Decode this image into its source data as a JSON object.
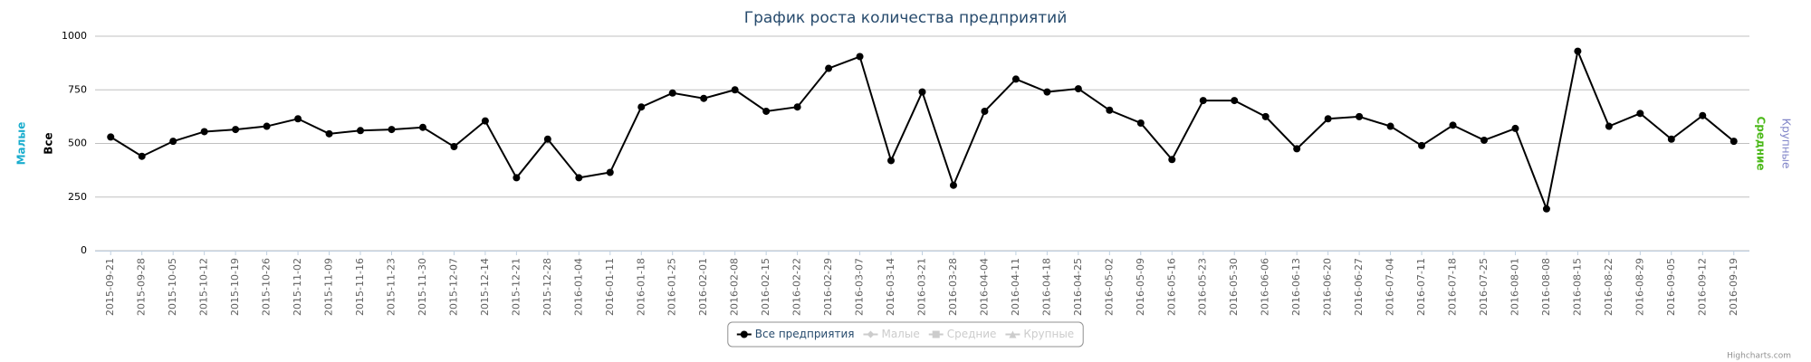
{
  "chart_data": {
    "type": "line",
    "title": "График роста количества предприятий",
    "categories": [
      "2015-09-21",
      "2015-09-28",
      "2015-10-05",
      "2015-10-12",
      "2015-10-19",
      "2015-10-26",
      "2015-11-02",
      "2015-11-09",
      "2015-11-16",
      "2015-11-23",
      "2015-11-30",
      "2015-12-07",
      "2015-12-14",
      "2015-12-21",
      "2015-12-28",
      "2016-01-04",
      "2016-01-11",
      "2016-01-18",
      "2016-01-25",
      "2016-02-01",
      "2016-02-08",
      "2016-02-15",
      "2016-02-22",
      "2016-02-29",
      "2016-03-07",
      "2016-03-14",
      "2016-03-21",
      "2016-03-28",
      "2016-04-04",
      "2016-04-11",
      "2016-04-18",
      "2016-04-25",
      "2016-05-02",
      "2016-05-09",
      "2016-05-16",
      "2016-05-23",
      "2016-05-30",
      "2016-06-06",
      "2016-06-13",
      "2016-06-20",
      "2016-06-27",
      "2016-07-04",
      "2016-07-11",
      "2016-07-18",
      "2016-07-25",
      "2016-08-01",
      "2016-08-08",
      "2016-08-15",
      "2016-08-22",
      "2016-08-29",
      "2016-09-05",
      "2016-09-12",
      "2016-09-19"
    ],
    "series": [
      {
        "name": "Все предприятия",
        "color": "#000000",
        "visible": true,
        "values": [
          530,
          440,
          510,
          555,
          565,
          580,
          615,
          545,
          560,
          565,
          575,
          485,
          605,
          340,
          520,
          340,
          365,
          670,
          735,
          710,
          750,
          650,
          670,
          850,
          905,
          420,
          740,
          305,
          650,
          800,
          740,
          755,
          655,
          595,
          425,
          700,
          700,
          625,
          475,
          615,
          625,
          580,
          490,
          585,
          515,
          570,
          195,
          930,
          580,
          640,
          520,
          630,
          510
        ]
      },
      {
        "name": "Малые",
        "color": "#1aadce",
        "visible": false
      },
      {
        "name": "Средние",
        "color": "#4cb91a",
        "visible": false
      },
      {
        "name": "Крупные",
        "color": "#8085c8",
        "visible": false
      }
    ],
    "axis_titles_left": [
      {
        "text": "Малые",
        "color": "#1aadce"
      },
      {
        "text": "Все",
        "color": "#000000"
      }
    ],
    "axis_titles_right": [
      {
        "text": "Средние",
        "color": "#4cb91a"
      },
      {
        "text": "Крупные",
        "color": "#8085c8"
      }
    ],
    "ylim": [
      0,
      1000
    ],
    "yticks": [
      0,
      250,
      500,
      750,
      1000
    ],
    "grid": true,
    "credits": "Highcharts.com"
  }
}
